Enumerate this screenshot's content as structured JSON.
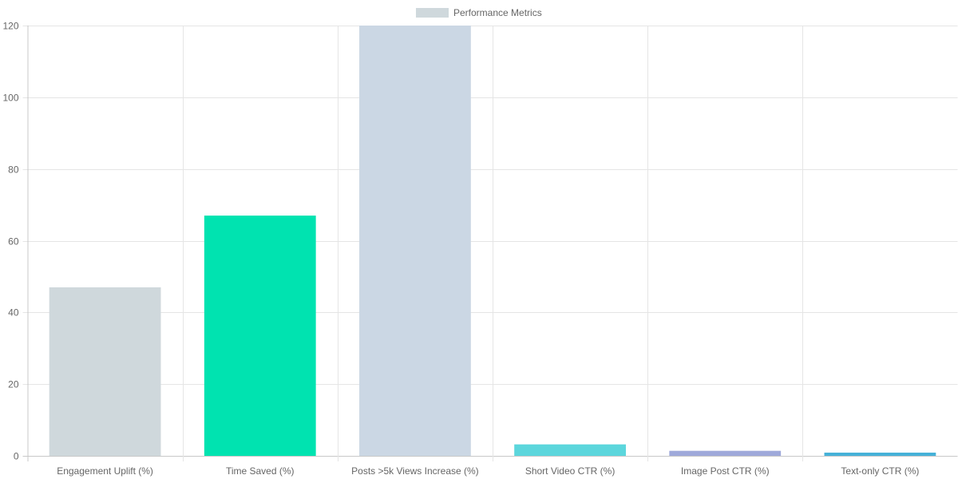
{
  "chart_data": {
    "type": "bar",
    "title": "",
    "xlabel": "",
    "ylabel": "",
    "legend": {
      "position": "top",
      "label": "Performance Metrics",
      "swatch_color": "#cfd8dc"
    },
    "grid": true,
    "ylim": [
      0,
      120
    ],
    "yticks": [
      0,
      20,
      40,
      60,
      80,
      100,
      120
    ],
    "categories": [
      "Engagement Uplift (%)",
      "Time Saved (%)",
      "Posts >5k Views Increase (%)",
      "Short Video CTR (%)",
      "Image Post CTR (%)",
      "Text-only CTR (%)"
    ],
    "series": [
      {
        "name": "Performance Metrics",
        "values": [
          47,
          67,
          120,
          3.2,
          1.4,
          0.9
        ],
        "colors": [
          "#cfd8dc",
          "#00e3b0",
          "#cbd7e4",
          "#5cd6dc",
          "#9fa9da",
          "#45b1d8"
        ]
      }
    ]
  }
}
